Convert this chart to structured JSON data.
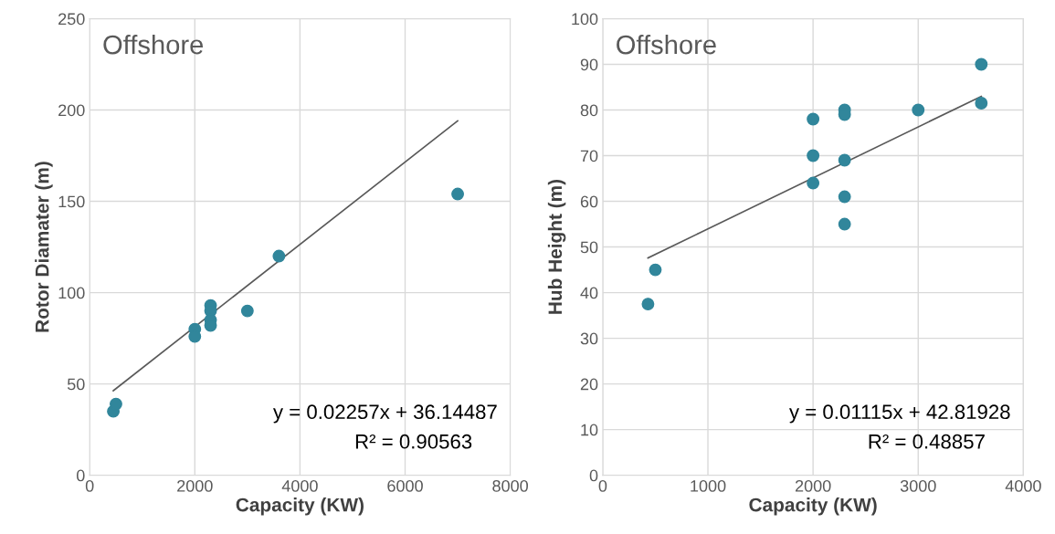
{
  "chart_data": [
    {
      "type": "scatter",
      "title": "Offshore",
      "xlabel": "Capacity (KW)",
      "ylabel": "Rotor Diamater (m)",
      "xlim": [
        0,
        8000
      ],
      "xticks": [
        0,
        2000,
        4000,
        6000,
        8000
      ],
      "ylim": [
        0,
        250
      ],
      "yticks": [
        0,
        50,
        100,
        150,
        200,
        250
      ],
      "grid": true,
      "marker": "circle",
      "legend": false,
      "series": [
        {
          "color": "#31869b",
          "x": [
            450,
            500,
            2000,
            2000,
            2300,
            2300,
            2300,
            2300,
            3000,
            3600,
            7000
          ],
          "values": [
            35,
            39,
            80,
            76,
            93,
            90,
            85,
            82,
            90,
            120,
            154
          ]
        },
        {
          "type": "line",
          "color": "#595959",
          "x": [
            450,
            7000
          ],
          "values": [
            46.3,
            194.1
          ],
          "marker": "none"
        }
      ],
      "annotations": [
        "y = 0.02257x + 36.14487",
        "R² = 0.90563"
      ]
    },
    {
      "type": "scatter",
      "title": "Offshore",
      "xlabel": "Capacity (KW)",
      "ylabel": "Hub Height (m)",
      "xlim": [
        0,
        4000
      ],
      "xticks": [
        0,
        1000,
        2000,
        3000,
        4000
      ],
      "ylim": [
        0,
        100
      ],
      "yticks": [
        0,
        10,
        20,
        30,
        40,
        50,
        60,
        70,
        80,
        90,
        100
      ],
      "grid": true,
      "marker": "circle",
      "legend": false,
      "series": [
        {
          "color": "#31869b",
          "x": [
            430,
            500,
            2000,
            2000,
            2000,
            2300,
            2300,
            2300,
            2300,
            2300,
            3000,
            3600,
            3600
          ],
          "values": [
            37.5,
            45,
            78,
            70,
            64,
            80,
            79,
            69,
            61,
            55,
            80,
            90,
            81.5
          ]
        },
        {
          "type": "line",
          "color": "#595959",
          "x": [
            430,
            3600
          ],
          "values": [
            47.6,
            83.0
          ],
          "marker": "none"
        }
      ],
      "annotations": [
        "y = 0.01115x + 42.81928",
        "R² = 0.48857"
      ]
    }
  ]
}
